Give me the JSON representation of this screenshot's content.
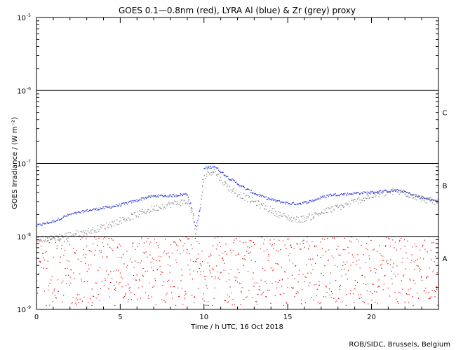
{
  "chart_data": {
    "type": "scatter",
    "title": "GOES 0.1—0.8nm (red), LYRA Al (blue) & Zr (grey) proxy",
    "xlabel": "Time / h UTC, 16 Oct 2018",
    "ylabel": "GOES Irradiance / (W m⁻²)",
    "credit": "ROB/SIDC, Brussels, Belgium",
    "x_ticks": [
      "0",
      "5",
      "10",
      "15",
      "20"
    ],
    "x_tick_values": [
      0,
      5,
      10,
      15,
      20
    ],
    "xlim": [
      0,
      24
    ],
    "y_scale": "log",
    "ylim": [
      1e-09,
      1e-05
    ],
    "y_ticks": [
      {
        "value": 1e-05,
        "mant": "10",
        "exp": "-5"
      },
      {
        "value": 1e-06,
        "mant": "10",
        "exp": "-6"
      },
      {
        "value": 1e-07,
        "mant": "10",
        "exp": "-7"
      },
      {
        "value": 1e-08,
        "mant": "10",
        "exp": "-8"
      },
      {
        "value": 1e-09,
        "mant": "10",
        "exp": "-9"
      }
    ],
    "class_levels": [
      {
        "label": "C",
        "value": 1e-06
      },
      {
        "label": "B",
        "value": 1e-07
      },
      {
        "label": "A",
        "value": 1e-08
      }
    ],
    "threshold_lines": [
      1e-06,
      1e-07,
      1e-08
    ],
    "series": [
      {
        "name": "LYRA Al proxy",
        "color": "#1f2fd6",
        "x": [
          0.0,
          0.5,
          1.0,
          1.5,
          2.0,
          2.5,
          3.0,
          3.5,
          4.0,
          4.5,
          5.0,
          5.5,
          6.0,
          6.5,
          7.0,
          7.5,
          8.0,
          8.5,
          9.0,
          9.3,
          9.5,
          9.8,
          10.0,
          10.3,
          10.6,
          11.0,
          11.5,
          12.0,
          12.5,
          13.0,
          13.5,
          14.0,
          14.5,
          15.0,
          15.5,
          16.0,
          16.5,
          17.0,
          17.5,
          18.0,
          18.5,
          19.0,
          19.5,
          20.0,
          20.5,
          21.0,
          21.5,
          22.0,
          22.5,
          23.0,
          23.5,
          24.0
        ],
        "y": [
          1.4e-08,
          1.5e-08,
          1.6e-08,
          1.8e-08,
          2e-08,
          2.1e-08,
          2.25e-08,
          2.35e-08,
          2.45e-08,
          2.55e-08,
          2.7e-08,
          2.9e-08,
          3.1e-08,
          3.4e-08,
          3.55e-08,
          3.6e-08,
          3.6e-08,
          3.7e-08,
          3.8e-08,
          2.4e-08,
          1.3e-08,
          2.5e-08,
          8.5e-08,
          8.8e-08,
          9.2e-08,
          7.8e-08,
          6.3e-08,
          5.3e-08,
          4.5e-08,
          3.9e-08,
          3.5e-08,
          3.2e-08,
          3e-08,
          2.85e-08,
          2.8e-08,
          2.9e-08,
          3.1e-08,
          3.4e-08,
          3.7e-08,
          3.75e-08,
          3.8e-08,
          3.9e-08,
          3.95e-08,
          4e-08,
          4.1e-08,
          4.2e-08,
          4.25e-08,
          4.1e-08,
          3.7e-08,
          3.4e-08,
          3.2e-08,
          3e-08
        ]
      },
      {
        "name": "LYRA Zr proxy",
        "color": "#8c8c8c",
        "x": [
          0.0,
          0.5,
          1.0,
          1.5,
          2.0,
          2.5,
          3.0,
          3.5,
          4.0,
          4.5,
          5.0,
          5.5,
          6.0,
          6.5,
          7.0,
          7.5,
          8.0,
          8.5,
          9.0,
          9.3,
          9.5,
          9.8,
          10.0,
          10.3,
          10.6,
          11.0,
          11.5,
          12.0,
          12.5,
          13.0,
          13.5,
          14.0,
          14.5,
          15.0,
          15.5,
          16.0,
          16.5,
          17.0,
          17.5,
          18.0,
          18.5,
          19.0,
          19.5,
          20.0,
          20.5,
          21.0,
          21.5,
          22.0,
          22.5,
          23.0,
          23.5,
          24.0
        ],
        "y": [
          9e-09,
          9.2e-09,
          9.5e-09,
          1e-08,
          1.05e-08,
          1.1e-08,
          1.15e-08,
          1.25e-08,
          1.35e-08,
          1.5e-08,
          1.65e-08,
          1.8e-08,
          2e-08,
          2.2e-08,
          2.4e-08,
          2.6e-08,
          2.75e-08,
          2.9e-08,
          3e-08,
          2.2e-08,
          1e-08,
          2.5e-08,
          6.5e-08,
          7.5e-08,
          8e-08,
          6e-08,
          4.6e-08,
          3.9e-08,
          3.4e-08,
          3e-08,
          2.6e-08,
          2.3e-08,
          2e-08,
          1.8e-08,
          1.7e-08,
          1.75e-08,
          1.9e-08,
          2.1e-08,
          2.3e-08,
          2.5e-08,
          2.7e-08,
          3e-08,
          3.3e-08,
          3.6e-08,
          3.8e-08,
          4e-08,
          4.1e-08,
          3.9e-08,
          3.6e-08,
          3.3e-08,
          3.1e-08,
          2.9e-08
        ]
      },
      {
        "name": "GOES 0.1-0.8nm",
        "color": "#e00000",
        "x": [
          0,
          2,
          4,
          6,
          8,
          10,
          12,
          14,
          16,
          18,
          20,
          22,
          24
        ],
        "y": [
          5e-09,
          4e-09,
          4.5e-09,
          5.5e-09,
          5e-09,
          5e-09,
          5e-09,
          5e-09,
          4.5e-09,
          5e-09,
          5e-09,
          4.5e-09,
          4.5e-09
        ],
        "note": "noisy scatter between roughly 1e-9 and 1.1e-8"
      }
    ]
  }
}
